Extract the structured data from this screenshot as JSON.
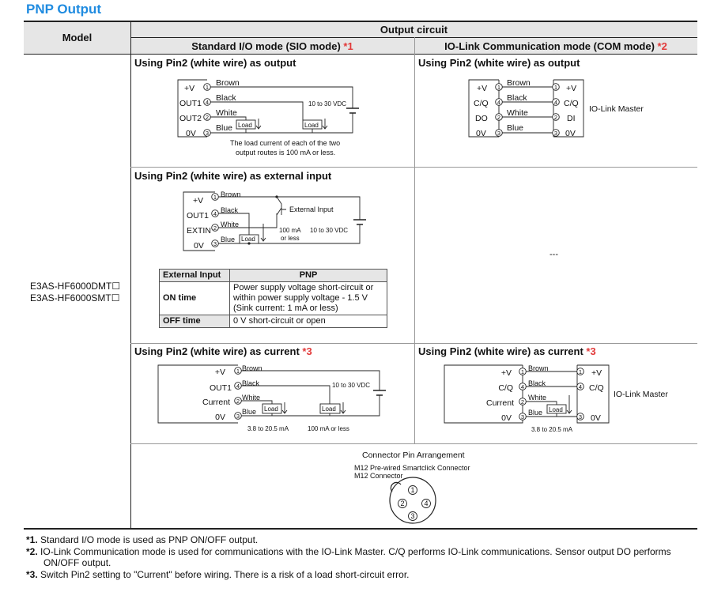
{
  "title": "PNP Output",
  "colors": {
    "title": "#1f8be0",
    "header_bg": "#e6e6e6",
    "asterisk": "#e23a3a"
  },
  "table": {
    "model_header": "Model",
    "output_header": "Output circuit",
    "sio_header": "Standard I/O mode (SIO mode)",
    "sio_ref": "*1",
    "com_header": "IO-Link Communication mode (COM mode)",
    "com_ref": "*2",
    "models": [
      "E3AS-HF6000DMT☐",
      "E3AS-HF6000SMT☐"
    ]
  },
  "sections": {
    "sio_output": "Using Pin2 (white wire) as output",
    "com_output": "Using Pin2 (white wire) as output",
    "sio_ext": "Using Pin2 (white wire) as external input",
    "com_ext": "---",
    "sio_current": "Using Pin2 (white wire) as current",
    "sio_current_ref": "*3",
    "com_current": "Using Pin2 (white wire) as current",
    "com_current_ref": "*3"
  },
  "pins": {
    "p1": "1",
    "p2": "2",
    "p3": "3",
    "p4": "4"
  },
  "wires": {
    "brown": "Brown",
    "black": "Black",
    "white": "White",
    "blue": "Blue"
  },
  "terminals": {
    "vplus": "+V",
    "out1": "OUT1",
    "out2": "OUT2",
    "zero": "0V",
    "cq": "C/Q",
    "do": "DO",
    "di": "DI",
    "extin": "EXTIN",
    "current": "Current"
  },
  "load": "Load",
  "supply": "10 to 30 VDC",
  "io_link_master": "IO-Link Master",
  "external_input_label": "External Input",
  "notes": {
    "load_current_1": "The load current of each of the two",
    "load_current_2": "output routes is 100 mA or less.",
    "ma100_1": "100 mA",
    "ma100_2": "or less",
    "current_range": "3.8 to 20.5 mA",
    "ma100": "100 mA or less"
  },
  "ext_table": {
    "headers": [
      "External Input",
      "PNP"
    ],
    "rows": [
      {
        "label": "ON time",
        "lines": [
          "Power supply voltage short-circuit or",
          "within power supply voltage - 1.5 V",
          "(Sink current: 1 mA or less)"
        ]
      },
      {
        "label": "OFF time",
        "lines": [
          "0 V short-circuit or open"
        ]
      }
    ]
  },
  "connector": {
    "title": "Connector Pin Arrangement",
    "line1": "M12 Pre-wired Smartclick Connector",
    "line2": "M12 Connector"
  },
  "footnotes": [
    {
      "mark": "*1.",
      "text": "Standard I/O mode is used as PNP ON/OFF output."
    },
    {
      "mark": "*2.",
      "text": "IO-Link Communication mode is used for communications with the IO-Link Master. C/Q performs IO-Link communications. Sensor output DO performs ON/OFF output."
    },
    {
      "mark": "*3.",
      "text": "Switch Pin2 setting to \"Current\" before wiring. There is a risk of a load short-circuit error."
    }
  ]
}
